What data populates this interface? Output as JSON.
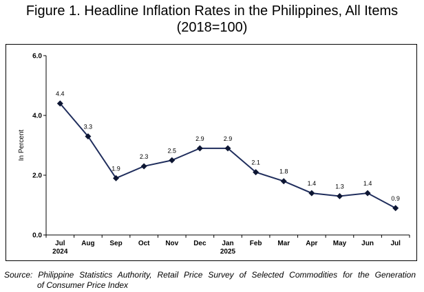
{
  "title_line1": "Figure 1. Headline Inflation Rates in the Philippines, All Items",
  "title_line2": "(2018=100)",
  "source_line1": "Source:  Philippine Statistics Authority, Retail Price Survey of Selected Commodities for the Generation",
  "source_line2": "of Consumer Price Index",
  "chart_data": {
    "type": "line",
    "ylabel": "In Percent",
    "ylim": [
      0,
      6
    ],
    "yticks": [
      "0.0",
      "2.0",
      "4.0",
      "6.0"
    ],
    "categories": [
      "Jul",
      "Aug",
      "Sep",
      "Oct",
      "Nov",
      "Dec",
      "Jan",
      "Feb",
      "Mar",
      "Apr",
      "May",
      "Jun",
      "Jul"
    ],
    "category_sublabels": [
      "2024",
      "",
      "",
      "",
      "",
      "",
      "2025",
      "",
      "",
      "",
      "",
      "",
      ""
    ],
    "values": [
      4.4,
      3.3,
      1.9,
      2.3,
      2.5,
      2.9,
      2.9,
      2.1,
      1.8,
      1.4,
      1.3,
      1.4,
      0.9
    ],
    "data_labels": [
      "4.4",
      "3.3",
      "1.9",
      "2.3",
      "2.5",
      "2.9",
      "2.9",
      "2.1",
      "1.8",
      "1.4",
      "1.3",
      "1.4",
      "0.9"
    ],
    "line_color": "#1f2d5c",
    "marker": "diamond",
    "grid": false
  }
}
